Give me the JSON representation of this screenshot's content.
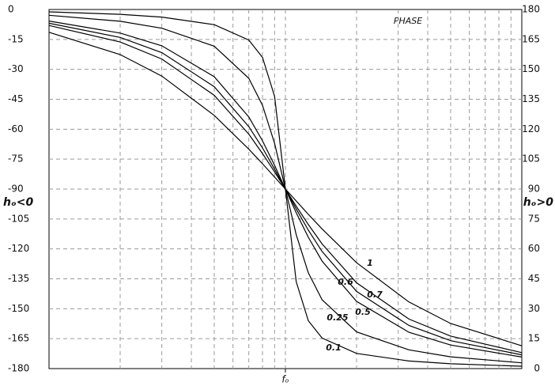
{
  "chart_data": {
    "type": "line",
    "annotation": "PHASE",
    "ylabel": "hₒ<0",
    "y2label": "hₒ>0",
    "xscale": "log",
    "xlim": [
      0.1,
      10
    ],
    "xticks": [
      {
        "value": 1,
        "label": "fₒ"
      }
    ],
    "xgrid": [
      0.2,
      0.3,
      0.4,
      0.5,
      0.6,
      0.7,
      0.8,
      0.9,
      1,
      2,
      3,
      4,
      5,
      6,
      7,
      8,
      9
    ],
    "ylim": [
      -180,
      0
    ],
    "yticks": [
      0,
      -15,
      -30,
      -45,
      -60,
      -75,
      -90,
      -105,
      -120,
      -135,
      -150,
      -165,
      -180
    ],
    "y2lim": [
      0,
      180
    ],
    "y2ticks": [
      180,
      165,
      150,
      135,
      120,
      105,
      90,
      75,
      60,
      45,
      30,
      15,
      0
    ],
    "grid": true,
    "x": [
      0.1,
      0.2,
      0.3,
      0.5,
      0.7,
      0.8,
      0.9,
      1,
      1.111,
      1.25,
      1.429,
      2,
      3.333,
      5,
      10
    ],
    "series": [
      {
        "name": "0.1",
        "color": "#000000",
        "values": [
          -1.2,
          -2.4,
          -3.8,
          -7.6,
          -15.3,
          -24.0,
          -43.5,
          -90,
          -136.5,
          -156.0,
          -164.7,
          -172.4,
          -176.2,
          -177.6,
          -178.8
        ]
      },
      {
        "name": "0.25",
        "color": "#000000",
        "values": [
          -2.9,
          -5.9,
          -9.4,
          -18.4,
          -34.5,
          -48.0,
          -67.1,
          -90,
          -112.9,
          -132.0,
          -145.5,
          -161.6,
          -170.6,
          -174.1,
          -177.1
        ]
      },
      {
        "name": "0.5",
        "color": "#000000",
        "values": [
          -5.8,
          -11.8,
          -18.2,
          -33.7,
          -53.9,
          -65.8,
          -78.1,
          -90,
          -101.9,
          -114.2,
          -126.1,
          -146.3,
          -161.8,
          -168.2,
          -174.2
        ]
      },
      {
        "name": "0.6",
        "color": "#000000",
        "values": [
          -6.9,
          -14.0,
          -21.6,
          -38.7,
          -58.7,
          -69.4,
          -80.0,
          -90,
          -100.0,
          -110.6,
          -121.3,
          -141.3,
          -158.4,
          -166.0,
          -173.1
        ]
      },
      {
        "name": "0.7",
        "color": "#000000",
        "values": [
          -8.0,
          -16.3,
          -24.8,
          -43.0,
          -62.5,
          -72.2,
          -81.4,
          -90,
          -98.6,
          -107.8,
          -117.5,
          -137.0,
          -155.2,
          -163.7,
          -172.0
        ]
      },
      {
        "name": "1",
        "color": "#000000",
        "values": [
          -11.4,
          -22.6,
          -33.4,
          -53.1,
          -70.0,
          -77.3,
          -84.0,
          -90,
          -96.0,
          -102.7,
          -110.0,
          -126.9,
          -146.6,
          -157.4,
          -168.6
        ]
      }
    ]
  }
}
